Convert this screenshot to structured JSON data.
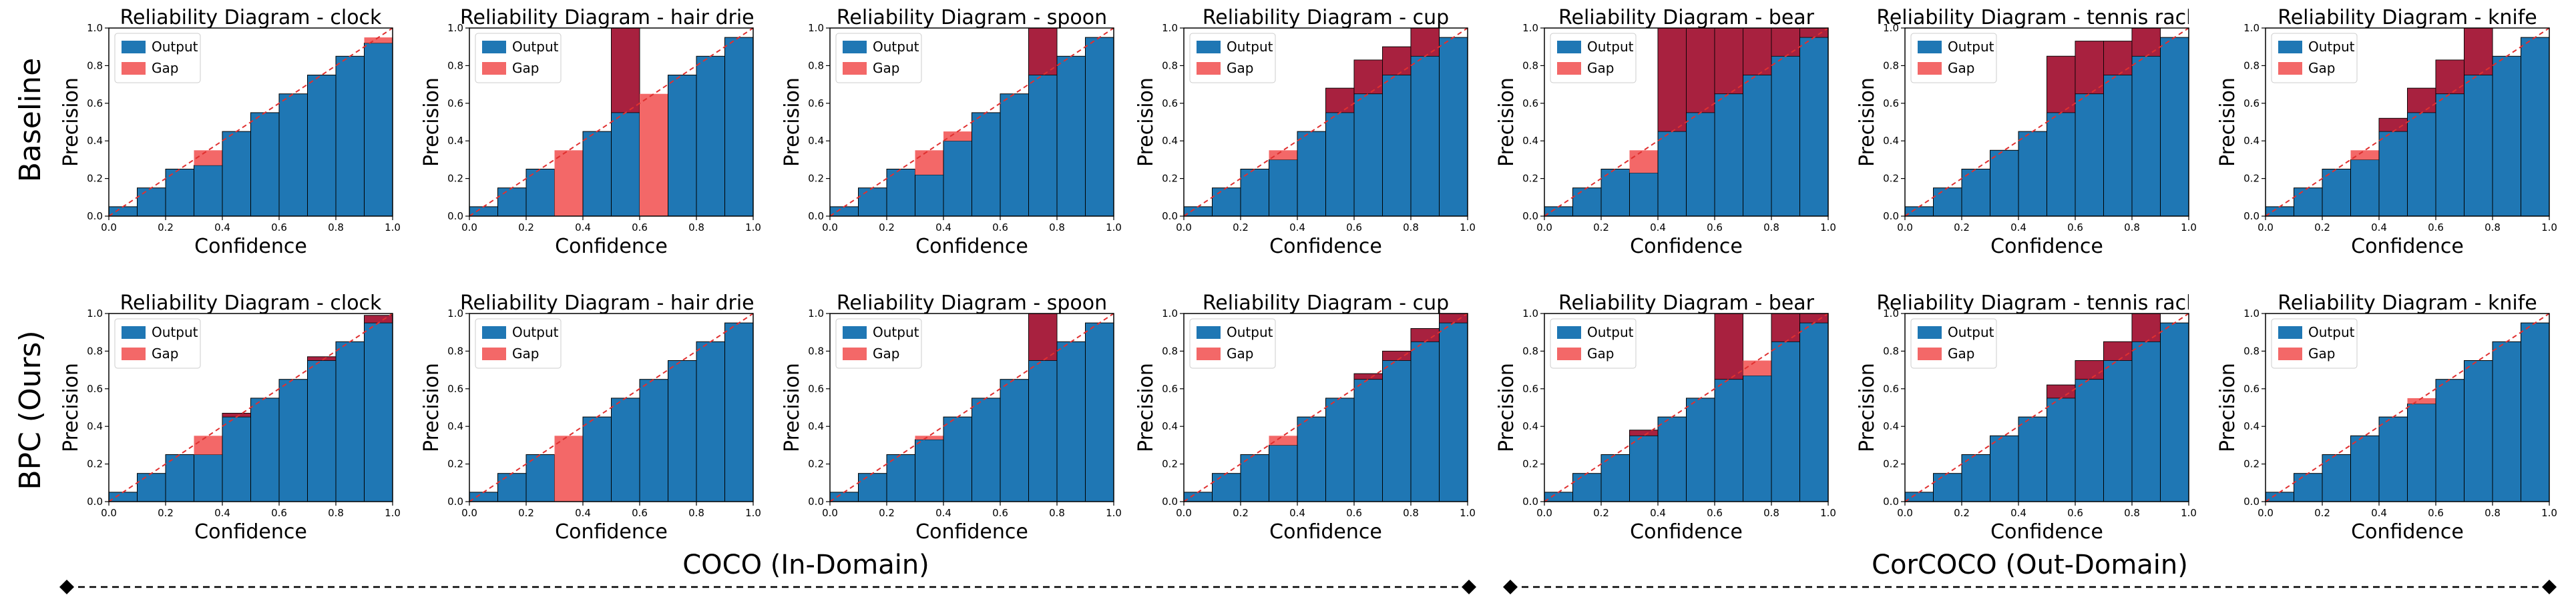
{
  "figure": {
    "row_labels": [
      "Baseline",
      "BPC (Ours)"
    ],
    "groups": [
      {
        "label": "COCO (In-Domain)"
      },
      {
        "label": "CorCOCO (Out-Domain)"
      }
    ],
    "colors": {
      "output": "#1f77b4",
      "gap_over": "#a8213f",
      "gap_under": "#f36868",
      "diagonal": "#e03030"
    }
  },
  "chart_data": [
    {
      "type": "bar",
      "row": "Baseline",
      "title": "Reliability Diagram - clock",
      "xlabel": "Confidence",
      "ylabel": "Precision",
      "xlim": [
        0,
        1
      ],
      "ylim": [
        0,
        1
      ],
      "xticks": [
        "0.0",
        "0.2",
        "0.4",
        "0.6",
        "0.8",
        "1.0"
      ],
      "yticks": [
        "0.0",
        "0.2",
        "0.4",
        "0.6",
        "0.8",
        "1.0"
      ],
      "legend": [
        "Output",
        "Gap"
      ],
      "bins": [
        0.05,
        0.15,
        0.25,
        0.35,
        0.45,
        0.55,
        0.65,
        0.75,
        0.85,
        0.95
      ],
      "outputs": [
        0.05,
        0.15,
        0.25,
        0.27,
        0.45,
        0.55,
        0.65,
        0.75,
        0.85,
        0.92
      ]
    },
    {
      "type": "bar",
      "row": "Baseline",
      "title": "Reliability Diagram - hair drier",
      "xlabel": "Confidence",
      "ylabel": "Precision",
      "xlim": [
        0,
        1
      ],
      "ylim": [
        0,
        1
      ],
      "xticks": [
        "0.0",
        "0.2",
        "0.4",
        "0.6",
        "0.8",
        "1.0"
      ],
      "yticks": [
        "0.0",
        "0.2",
        "0.4",
        "0.6",
        "0.8",
        "1.0"
      ],
      "legend": [
        "Output",
        "Gap"
      ],
      "bins": [
        0.05,
        0.15,
        0.25,
        0.35,
        0.45,
        0.55,
        0.65,
        0.75,
        0.85,
        0.95
      ],
      "outputs": [
        0.05,
        0.15,
        0.25,
        0.0,
        0.45,
        1.0,
        0.0,
        0.75,
        0.85,
        0.95
      ]
    },
    {
      "type": "bar",
      "row": "Baseline",
      "title": "Reliability Diagram - spoon",
      "xlabel": "Confidence",
      "ylabel": "Precision",
      "xlim": [
        0,
        1
      ],
      "ylim": [
        0,
        1
      ],
      "xticks": [
        "0.0",
        "0.2",
        "0.4",
        "0.6",
        "0.8",
        "1.0"
      ],
      "yticks": [
        "0.0",
        "0.2",
        "0.4",
        "0.6",
        "0.8",
        "1.0"
      ],
      "legend": [
        "Output",
        "Gap"
      ],
      "bins": [
        0.05,
        0.15,
        0.25,
        0.35,
        0.45,
        0.55,
        0.65,
        0.75,
        0.85,
        0.95
      ],
      "outputs": [
        0.05,
        0.15,
        0.25,
        0.22,
        0.4,
        0.55,
        0.65,
        1.0,
        0.85,
        0.95
      ]
    },
    {
      "type": "bar",
      "row": "Baseline",
      "title": "Reliability Diagram - cup",
      "xlabel": "Confidence",
      "ylabel": "Precision",
      "xlim": [
        0,
        1
      ],
      "ylim": [
        0,
        1
      ],
      "xticks": [
        "0.0",
        "0.2",
        "0.4",
        "0.6",
        "0.8",
        "1.0"
      ],
      "yticks": [
        "0.0",
        "0.2",
        "0.4",
        "0.6",
        "0.8",
        "1.0"
      ],
      "legend": [
        "Output",
        "Gap"
      ],
      "bins": [
        0.05,
        0.15,
        0.25,
        0.35,
        0.45,
        0.55,
        0.65,
        0.75,
        0.85,
        0.95
      ],
      "outputs": [
        0.05,
        0.15,
        0.25,
        0.3,
        0.45,
        0.68,
        0.83,
        0.9,
        1.0,
        0.95
      ]
    },
    {
      "type": "bar",
      "row": "Baseline",
      "title": "Reliability Diagram - bear",
      "xlabel": "Confidence",
      "ylabel": "Precision",
      "xlim": [
        0,
        1
      ],
      "ylim": [
        0,
        1
      ],
      "xticks": [
        "0.0",
        "0.2",
        "0.4",
        "0.6",
        "0.8",
        "1.0"
      ],
      "yticks": [
        "0.0",
        "0.2",
        "0.4",
        "0.6",
        "0.8",
        "1.0"
      ],
      "legend": [
        "Output",
        "Gap"
      ],
      "bins": [
        0.05,
        0.15,
        0.25,
        0.35,
        0.45,
        0.55,
        0.65,
        0.75,
        0.85,
        0.95
      ],
      "outputs": [
        0.05,
        0.15,
        0.25,
        0.23,
        1.0,
        1.0,
        1.0,
        1.0,
        1.0,
        1.0
      ]
    },
    {
      "type": "bar",
      "row": "Baseline",
      "title": "Reliability Diagram - tennis racket",
      "xlabel": "Confidence",
      "ylabel": "Precision",
      "xlim": [
        0,
        1
      ],
      "ylim": [
        0,
        1
      ],
      "xticks": [
        "0.0",
        "0.2",
        "0.4",
        "0.6",
        "0.8",
        "1.0"
      ],
      "yticks": [
        "0.0",
        "0.2",
        "0.4",
        "0.6",
        "0.8",
        "1.0"
      ],
      "legend": [
        "Output",
        "Gap"
      ],
      "bins": [
        0.05,
        0.15,
        0.25,
        0.35,
        0.45,
        0.55,
        0.65,
        0.75,
        0.85,
        0.95
      ],
      "outputs": [
        0.05,
        0.15,
        0.25,
        0.35,
        0.45,
        0.85,
        0.93,
        0.93,
        1.0,
        0.95
      ]
    },
    {
      "type": "bar",
      "row": "Baseline",
      "title": "Reliability Diagram - knife",
      "xlabel": "Confidence",
      "ylabel": "Precision",
      "xlim": [
        0,
        1
      ],
      "ylim": [
        0,
        1
      ],
      "xticks": [
        "0.0",
        "0.2",
        "0.4",
        "0.6",
        "0.8",
        "1.0"
      ],
      "yticks": [
        "0.0",
        "0.2",
        "0.4",
        "0.6",
        "0.8",
        "1.0"
      ],
      "legend": [
        "Output",
        "Gap"
      ],
      "bins": [
        0.05,
        0.15,
        0.25,
        0.35,
        0.45,
        0.55,
        0.65,
        0.75,
        0.85,
        0.95
      ],
      "outputs": [
        0.05,
        0.15,
        0.25,
        0.3,
        0.52,
        0.68,
        0.83,
        1.0,
        0.85,
        0.95
      ]
    },
    {
      "type": "bar",
      "row": "BPC (Ours)",
      "title": "Reliability Diagram - clock",
      "xlabel": "Confidence",
      "ylabel": "Precision",
      "xlim": [
        0,
        1
      ],
      "ylim": [
        0,
        1
      ],
      "xticks": [
        "0.0",
        "0.2",
        "0.4",
        "0.6",
        "0.8",
        "1.0"
      ],
      "yticks": [
        "0.0",
        "0.2",
        "0.4",
        "0.6",
        "0.8",
        "1.0"
      ],
      "legend": [
        "Output",
        "Gap"
      ],
      "bins": [
        0.05,
        0.15,
        0.25,
        0.35,
        0.45,
        0.55,
        0.65,
        0.75,
        0.85,
        0.95
      ],
      "outputs": [
        0.05,
        0.15,
        0.25,
        0.25,
        0.47,
        0.55,
        0.65,
        0.77,
        0.85,
        0.99
      ]
    },
    {
      "type": "bar",
      "row": "BPC (Ours)",
      "title": "Reliability Diagram - hair drier",
      "xlabel": "Confidence",
      "ylabel": "Precision",
      "xlim": [
        0,
        1
      ],
      "ylim": [
        0,
        1
      ],
      "xticks": [
        "0.0",
        "0.2",
        "0.4",
        "0.6",
        "0.8",
        "1.0"
      ],
      "yticks": [
        "0.0",
        "0.2",
        "0.4",
        "0.6",
        "0.8",
        "1.0"
      ],
      "legend": [
        "Output",
        "Gap"
      ],
      "bins": [
        0.05,
        0.15,
        0.25,
        0.35,
        0.45,
        0.55,
        0.65,
        0.75,
        0.85,
        0.95
      ],
      "outputs": [
        0.05,
        0.15,
        0.25,
        0.0,
        0.45,
        0.55,
        0.65,
        0.75,
        0.85,
        0.95
      ]
    },
    {
      "type": "bar",
      "row": "BPC (Ours)",
      "title": "Reliability Diagram - spoon",
      "xlabel": "Confidence",
      "ylabel": "Precision",
      "xlim": [
        0,
        1
      ],
      "ylim": [
        0,
        1
      ],
      "xticks": [
        "0.0",
        "0.2",
        "0.4",
        "0.6",
        "0.8",
        "1.0"
      ],
      "yticks": [
        "0.0",
        "0.2",
        "0.4",
        "0.6",
        "0.8",
        "1.0"
      ],
      "legend": [
        "Output",
        "Gap"
      ],
      "bins": [
        0.05,
        0.15,
        0.25,
        0.35,
        0.45,
        0.55,
        0.65,
        0.75,
        0.85,
        0.95
      ],
      "outputs": [
        0.05,
        0.15,
        0.25,
        0.33,
        0.45,
        0.55,
        0.65,
        1.0,
        0.85,
        0.95
      ]
    },
    {
      "type": "bar",
      "row": "BPC (Ours)",
      "title": "Reliability Diagram - cup",
      "xlabel": "Confidence",
      "ylabel": "Precision",
      "xlim": [
        0,
        1
      ],
      "ylim": [
        0,
        1
      ],
      "xticks": [
        "0.0",
        "0.2",
        "0.4",
        "0.6",
        "0.8",
        "1.0"
      ],
      "yticks": [
        "0.0",
        "0.2",
        "0.4",
        "0.6",
        "0.8",
        "1.0"
      ],
      "legend": [
        "Output",
        "Gap"
      ],
      "bins": [
        0.05,
        0.15,
        0.25,
        0.35,
        0.45,
        0.55,
        0.65,
        0.75,
        0.85,
        0.95
      ],
      "outputs": [
        0.05,
        0.15,
        0.25,
        0.3,
        0.45,
        0.55,
        0.68,
        0.8,
        0.92,
        1.0
      ]
    },
    {
      "type": "bar",
      "row": "BPC (Ours)",
      "title": "Reliability Diagram - bear",
      "xlabel": "Confidence",
      "ylabel": "Precision",
      "xlim": [
        0,
        1
      ],
      "ylim": [
        0,
        1
      ],
      "xticks": [
        "0.0",
        "0.2",
        "0.4",
        "0.6",
        "0.8",
        "1.0"
      ],
      "yticks": [
        "0.0",
        "0.2",
        "0.4",
        "0.6",
        "0.8",
        "1.0"
      ],
      "legend": [
        "Output",
        "Gap"
      ],
      "bins": [
        0.05,
        0.15,
        0.25,
        0.35,
        0.45,
        0.55,
        0.65,
        0.75,
        0.85,
        0.95
      ],
      "outputs": [
        0.05,
        0.15,
        0.25,
        0.38,
        0.45,
        0.55,
        1.0,
        0.67,
        1.0,
        1.0
      ]
    },
    {
      "type": "bar",
      "row": "BPC (Ours)",
      "title": "Reliability Diagram - tennis racket",
      "xlabel": "Confidence",
      "ylabel": "Precision",
      "xlim": [
        0,
        1
      ],
      "ylim": [
        0,
        1
      ],
      "xticks": [
        "0.0",
        "0.2",
        "0.4",
        "0.6",
        "0.8",
        "1.0"
      ],
      "yticks": [
        "0.0",
        "0.2",
        "0.4",
        "0.6",
        "0.8",
        "1.0"
      ],
      "legend": [
        "Output",
        "Gap"
      ],
      "bins": [
        0.05,
        0.15,
        0.25,
        0.35,
        0.45,
        0.55,
        0.65,
        0.75,
        0.85,
        0.95
      ],
      "outputs": [
        0.05,
        0.15,
        0.25,
        0.35,
        0.45,
        0.62,
        0.75,
        0.85,
        1.0,
        0.95
      ]
    },
    {
      "type": "bar",
      "row": "BPC (Ours)",
      "title": "Reliability Diagram - knife",
      "xlabel": "Confidence",
      "ylabel": "Precision",
      "xlim": [
        0,
        1
      ],
      "ylim": [
        0,
        1
      ],
      "xticks": [
        "0.0",
        "0.2",
        "0.4",
        "0.6",
        "0.8",
        "1.0"
      ],
      "yticks": [
        "0.0",
        "0.2",
        "0.4",
        "0.6",
        "0.8",
        "1.0"
      ],
      "legend": [
        "Output",
        "Gap"
      ],
      "bins": [
        0.05,
        0.15,
        0.25,
        0.35,
        0.45,
        0.55,
        0.65,
        0.75,
        0.85,
        0.95
      ],
      "outputs": [
        0.05,
        0.15,
        0.25,
        0.35,
        0.45,
        0.52,
        0.65,
        0.75,
        0.85,
        0.95
      ]
    }
  ]
}
